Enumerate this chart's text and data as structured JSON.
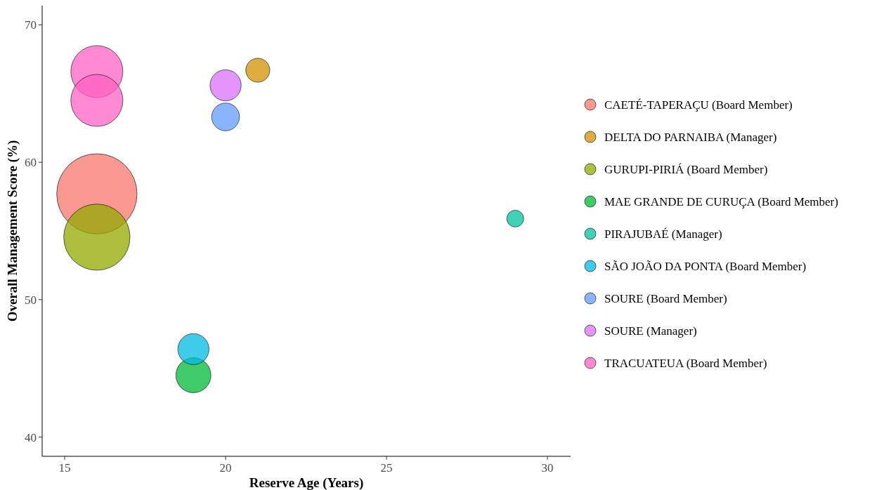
{
  "chart_data": {
    "type": "bubble",
    "xlabel": "Reserve Age (Years)",
    "ylabel": "Overall Management Score (%)",
    "xlim": [
      14.3,
      30.72
    ],
    "ylim": [
      38.6,
      71.4
    ],
    "xticks": [
      15,
      20,
      25,
      30
    ],
    "yticks": [
      40,
      50,
      60,
      70
    ],
    "grid": false,
    "legend": "right",
    "marker": "circle",
    "series": [
      {
        "name": "CAETÉ-TAPERAÇU (Board Member)",
        "color": "#F8766D",
        "x": [
          16
        ],
        "values": [
          57.7
        ],
        "sizes": [
          1
        ]
      },
      {
        "name": "DELTA DO PARNAIBA (Manager)",
        "color": "#D39200",
        "x": [
          21
        ],
        "values": [
          66.7
        ],
        "sizes": [
          0.089
        ]
      },
      {
        "name": "GURUPI-PIRIÁ (Board Member)",
        "color": "#93AA00",
        "x": [
          16
        ],
        "values": [
          54.55
        ],
        "sizes": [
          0.68
        ]
      },
      {
        "name": "MAE GRANDE DE CURUÇA (Board Member)",
        "color": "#00BA38",
        "x": [
          19
        ],
        "values": [
          44.5
        ],
        "sizes": [
          0.19
        ]
      },
      {
        "name": "PIRAJUBAÉ (Manager)",
        "color": "#00C19F",
        "x": [
          29
        ],
        "values": [
          55.9
        ],
        "sizes": [
          0.044
        ]
      },
      {
        "name": "SÃO JOÃO DA PONTA (Board Member)",
        "color": "#00B9E3",
        "x": [
          19
        ],
        "values": [
          46.4
        ],
        "sizes": [
          0.15
        ]
      },
      {
        "name": "SOURE (Board Member)",
        "color": "#619CFF",
        "x": [
          20
        ],
        "values": [
          63.3
        ],
        "sizes": [
          0.12
        ]
      },
      {
        "name": "SOURE (Manager)",
        "color": "#DB72FB",
        "x": [
          20
        ],
        "values": [
          65.6
        ],
        "sizes": [
          0.15
        ]
      },
      {
        "name": "TRACUATEUA (Board Member)",
        "color": "#FF61C3",
        "x": [
          16,
          16
        ],
        "values": [
          66.6,
          64.5
        ],
        "sizes": [
          0.42,
          0.42
        ]
      }
    ]
  }
}
